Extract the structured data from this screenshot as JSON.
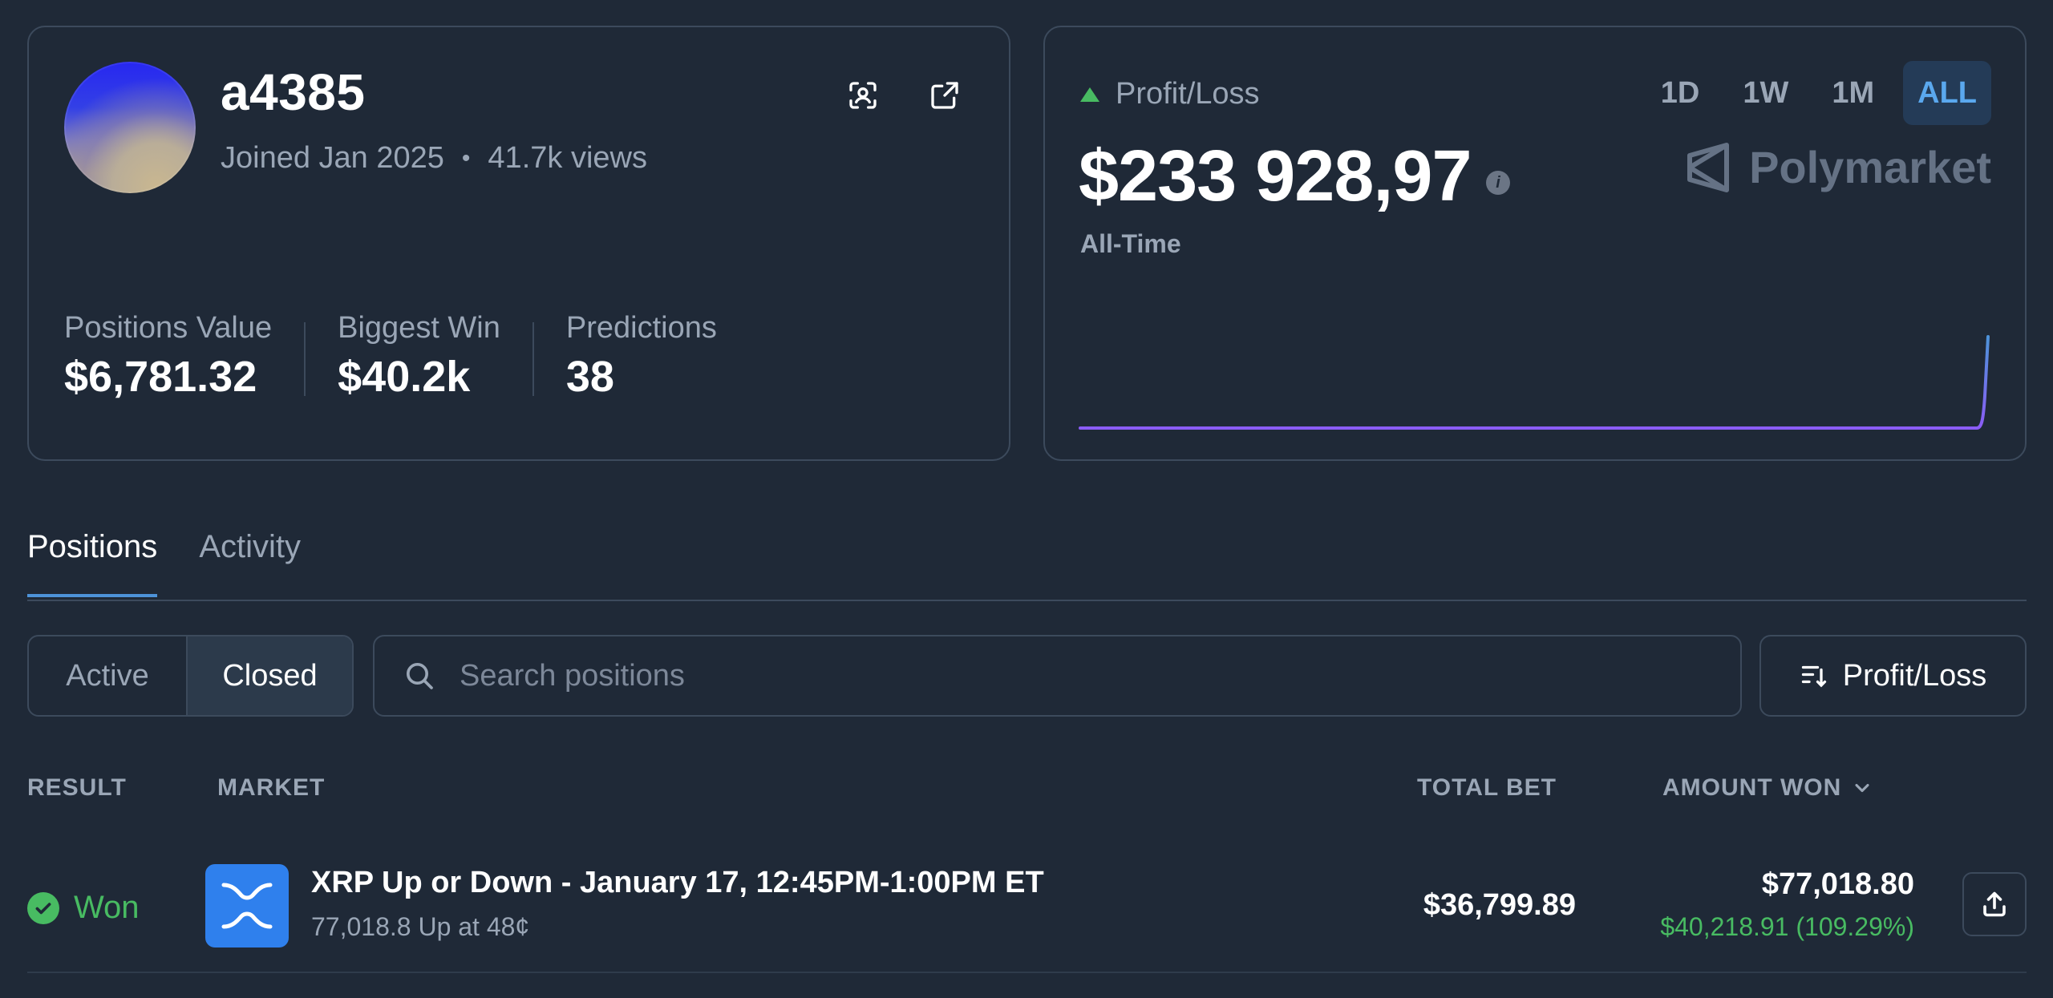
{
  "profile": {
    "username": "a4385",
    "joined": "Joined Jan 2025",
    "views": "41.7k views",
    "stats": [
      {
        "label": "Positions Value",
        "value": "$6,781.32"
      },
      {
        "label": "Biggest Win",
        "value": "$40.2k"
      },
      {
        "label": "Predictions",
        "value": "38"
      }
    ],
    "icons": [
      "scan-icon",
      "external-link-icon"
    ]
  },
  "pnl": {
    "label": "Profit/Loss",
    "value": "$233 928,97",
    "period_label": "All-Time",
    "brand": "Polymarket",
    "ranges": [
      "1D",
      "1W",
      "1M",
      "ALL"
    ],
    "active_range": "ALL",
    "colors": {
      "up": "#48bb62",
      "line_start": "#8b5cf6",
      "line_end": "#4d93d9"
    }
  },
  "tabs": [
    {
      "label": "Positions",
      "active": true
    },
    {
      "label": "Activity",
      "active": false
    }
  ],
  "filters": {
    "segments": [
      "Active",
      "Closed"
    ],
    "selected": "Closed",
    "search_placeholder": "Search positions",
    "sort_label": "Profit/Loss"
  },
  "table": {
    "headers": {
      "result": "RESULT",
      "market": "MARKET",
      "total_bet": "TOTAL BET",
      "amount_won": "AMOUNT WON"
    },
    "rows": [
      {
        "result": "Won",
        "market_title": "XRP Up or Down - January 17, 12:45PM-1:00PM ET",
        "market_sub": "77,018.8 Up at 48¢",
        "total_bet": "$36,799.89",
        "amount_won": "$77,018.80",
        "gain": "$40,218.91 (109.29%)"
      }
    ]
  }
}
